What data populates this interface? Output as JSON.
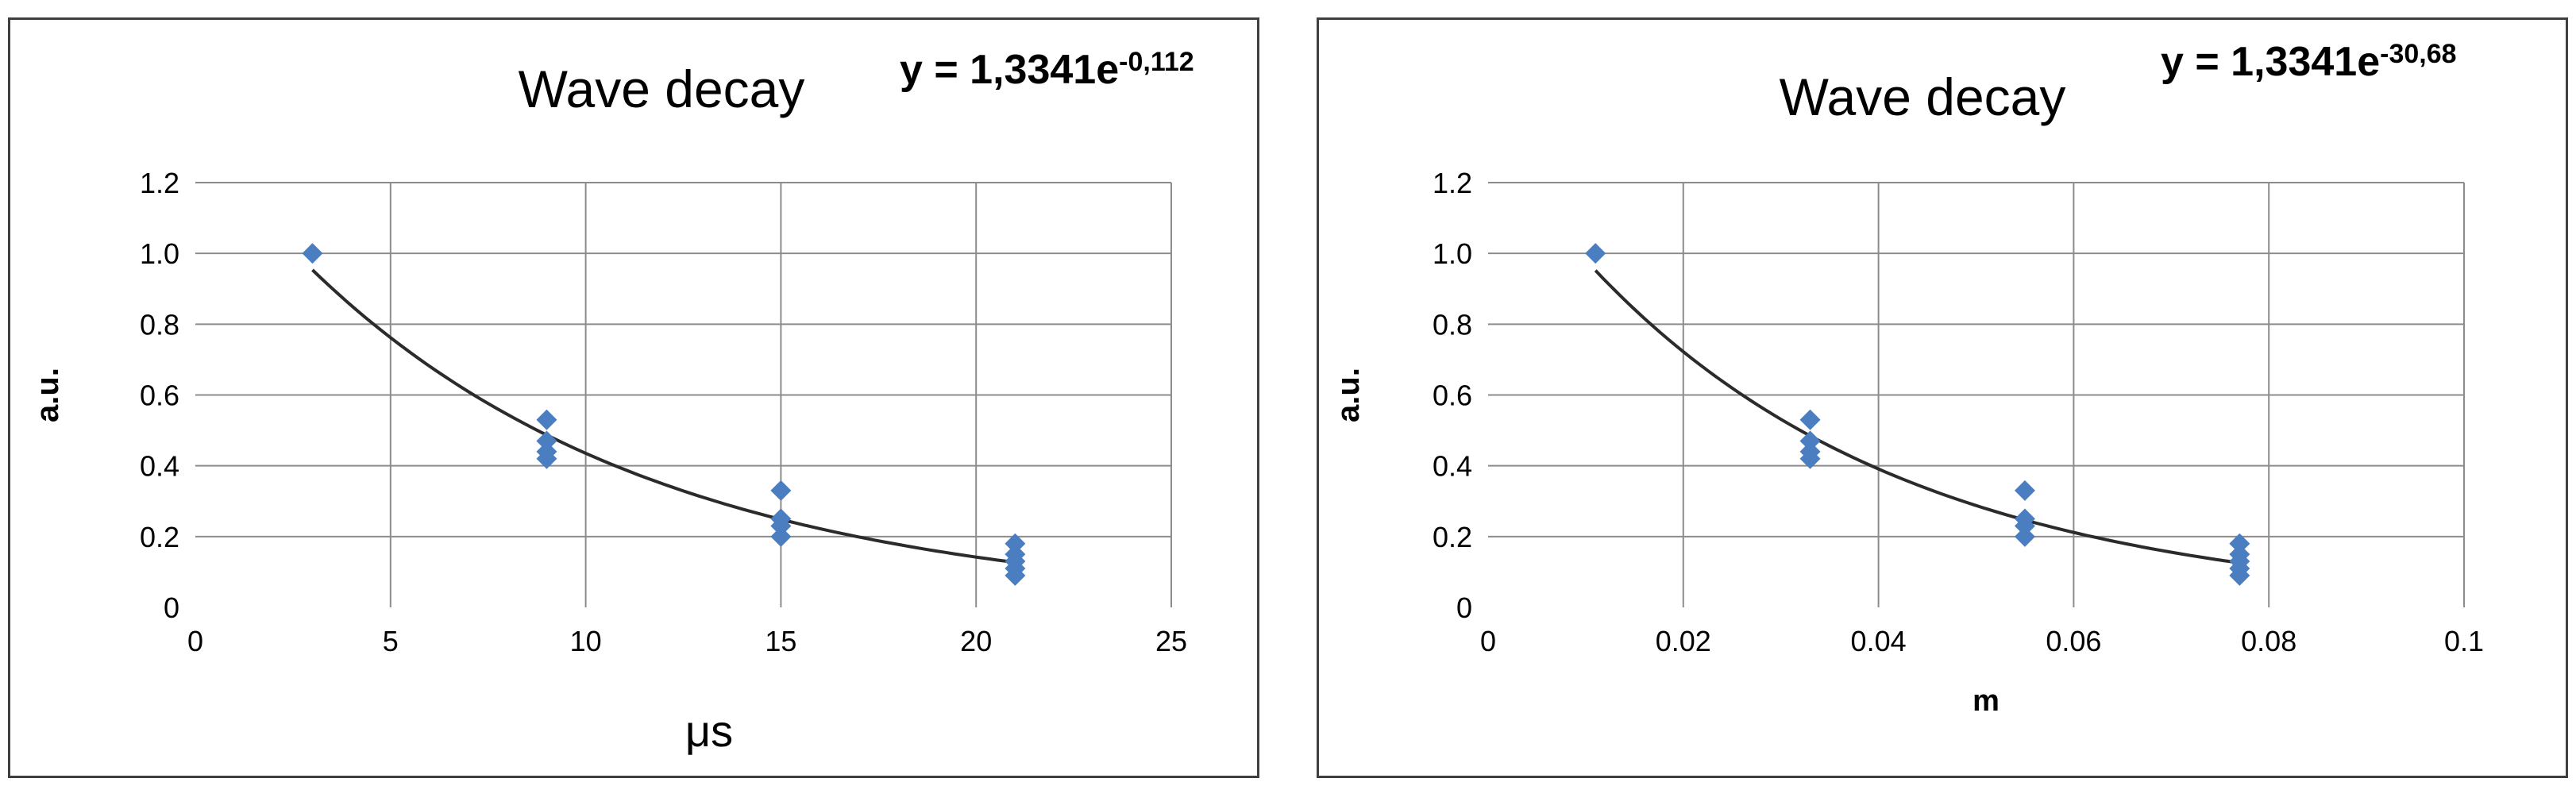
{
  "chart_data": [
    {
      "type": "scatter",
      "title": "Wave decay",
      "equation_base": "y = 1,3341e",
      "equation_exponent": "-0,112",
      "xlabel": "μs",
      "ylabel": "a.u.",
      "xlim": [
        0,
        25
      ],
      "ylim": [
        0,
        1.2
      ],
      "x_ticks": [
        0,
        5,
        10,
        15,
        20,
        25
      ],
      "y_tick_labels": [
        "0",
        "0.2",
        "0.4",
        "0.6",
        "0.8",
        "1.0",
        "1.2"
      ],
      "grid": true,
      "series": [
        {
          "color": "#4a7ec0",
          "points": [
            {
              "x": 3,
              "y": 1.0
            },
            {
              "x": 9,
              "y": 0.53
            },
            {
              "x": 9,
              "y": 0.47
            },
            {
              "x": 9,
              "y": 0.44
            },
            {
              "x": 9,
              "y": 0.42
            },
            {
              "x": 15,
              "y": 0.33
            },
            {
              "x": 15,
              "y": 0.25
            },
            {
              "x": 15,
              "y": 0.23
            },
            {
              "x": 15,
              "y": 0.2
            },
            {
              "x": 21,
              "y": 0.18
            },
            {
              "x": 21,
              "y": 0.15
            },
            {
              "x": 21,
              "y": 0.13
            },
            {
              "x": 21,
              "y": 0.11
            },
            {
              "x": 21,
              "y": 0.09
            }
          ]
        }
      ],
      "trendline": {
        "a": 1.3341,
        "b": -0.112,
        "x_from": 3,
        "x_to": 21,
        "color": "#2b2b2b"
      }
    },
    {
      "type": "scatter",
      "title": "Wave decay",
      "equation_base": "y = 1,3341e",
      "equation_exponent": "-30,68",
      "xlabel": "m",
      "ylabel": "a.u.",
      "xlim": [
        0,
        0.1
      ],
      "ylim": [
        0,
        1.2
      ],
      "x_ticks": [
        0,
        0.02,
        0.04,
        0.06,
        0.08,
        0.1
      ],
      "y_tick_labels": [
        "0",
        "0.2",
        "0.4",
        "0.6",
        "0.8",
        "1.0",
        "1.2"
      ],
      "grid": true,
      "series": [
        {
          "color": "#4a7ec0",
          "points": [
            {
              "x": 0.011,
              "y": 1.0
            },
            {
              "x": 0.033,
              "y": 0.53
            },
            {
              "x": 0.033,
              "y": 0.47
            },
            {
              "x": 0.033,
              "y": 0.44
            },
            {
              "x": 0.033,
              "y": 0.42
            },
            {
              "x": 0.055,
              "y": 0.33
            },
            {
              "x": 0.055,
              "y": 0.25
            },
            {
              "x": 0.055,
              "y": 0.23
            },
            {
              "x": 0.055,
              "y": 0.2
            },
            {
              "x": 0.077,
              "y": 0.18
            },
            {
              "x": 0.077,
              "y": 0.15
            },
            {
              "x": 0.077,
              "y": 0.13
            },
            {
              "x": 0.077,
              "y": 0.11
            },
            {
              "x": 0.077,
              "y": 0.09
            }
          ]
        }
      ],
      "trendline": {
        "a": 1.3341,
        "b": -30.68,
        "x_from": 0.011,
        "x_to": 0.077,
        "color": "#2b2b2b"
      }
    }
  ]
}
